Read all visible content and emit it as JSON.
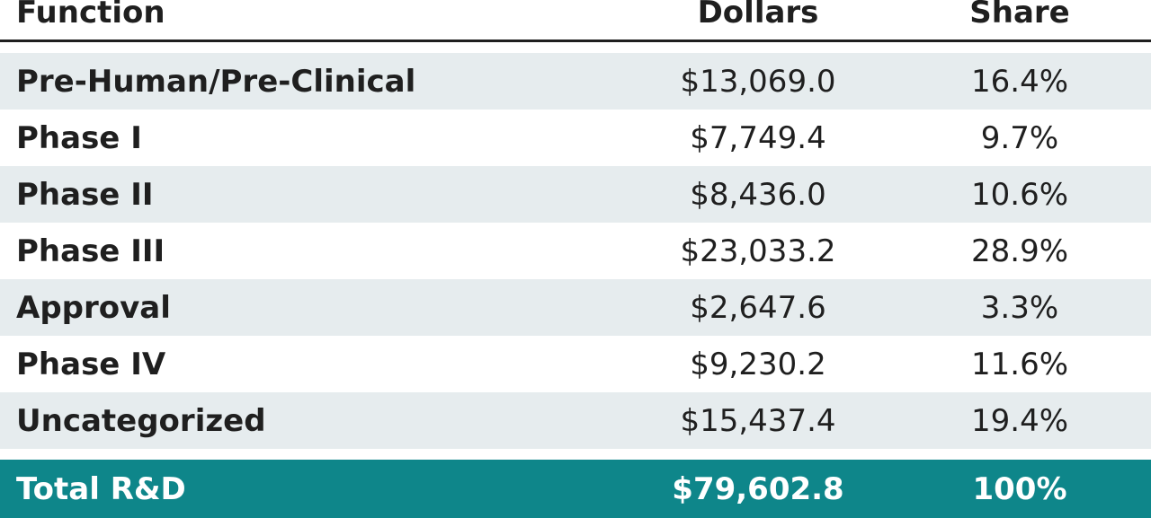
{
  "table": {
    "header": [
      "Function",
      "Dollars",
      "Share"
    ],
    "rows": [
      [
        "Pre-Human/Pre-Clinical",
        "$13,069.0",
        "16.4%"
      ],
      [
        "Phase I",
        "$7,749.4",
        "9.7%"
      ],
      [
        "Phase II",
        "$8,436.0",
        "10.6%"
      ],
      [
        "Phase III",
        "$23,033.2",
        "28.9%"
      ],
      [
        "Approval",
        "$2,647.6",
        "3.3%"
      ],
      [
        "Phase IV",
        "$9,230.2",
        "11.6%"
      ],
      [
        "Uncategorized",
        "$15,437.4",
        "19.4%"
      ]
    ],
    "total": [
      "Total R&D",
      "$79,602.8",
      "100%"
    ]
  }
}
